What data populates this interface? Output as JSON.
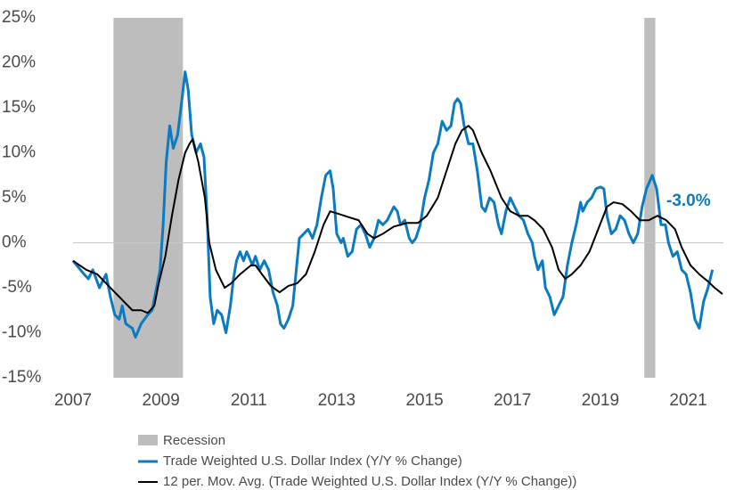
{
  "chart_data": {
    "type": "line",
    "xlim": [
      2007,
      2021.8
    ],
    "xticks": [
      2007,
      2009,
      2011,
      2013,
      2015,
      2017,
      2019,
      2021
    ],
    "ylim": [
      -15,
      25
    ],
    "yticks": [
      {
        "value": -15,
        "label": "-15%"
      },
      {
        "value": -10,
        "label": "-10%"
      },
      {
        "value": -5,
        "label": "-5%"
      },
      {
        "value": 0,
        "label": "0%"
      },
      {
        "value": 5,
        "label": "5%"
      },
      {
        "value": 10,
        "label": "10%"
      },
      {
        "value": 15,
        "label": "15%"
      },
      {
        "value": 20,
        "label": "20%"
      },
      {
        "value": 25,
        "label": "25%"
      }
    ],
    "zero_line": true,
    "recession_label": "Recession",
    "recession_color": "#bdbdbd",
    "recessions": [
      {
        "start": 2007.92,
        "end": 2009.5
      },
      {
        "start": 2020.0,
        "end": 2020.25
      }
    ],
    "annotation": "-3.0%",
    "series": [
      {
        "name": "Trade Weighted U.S. Dollar Index (Y/Y % Change)",
        "color": "#0a7bc1",
        "x": [
          2007.0,
          2007.25,
          2007.35,
          2007.45,
          2007.6,
          2007.75,
          2007.85,
          2007.95,
          2008.05,
          2008.12,
          2008.2,
          2008.35,
          2008.42,
          2008.55,
          2008.7,
          2008.8,
          2008.9,
          2008.98,
          2009.05,
          2009.12,
          2009.2,
          2009.28,
          2009.38,
          2009.48,
          2009.55,
          2009.62,
          2009.7,
          2009.8,
          2009.9,
          2009.98,
          2010.05,
          2010.12,
          2010.2,
          2010.28,
          2010.38,
          2010.48,
          2010.58,
          2010.65,
          2010.72,
          2010.8,
          2010.88,
          2010.95,
          2011.0,
          2011.08,
          2011.15,
          2011.25,
          2011.35,
          2011.45,
          2011.55,
          2011.65,
          2011.72,
          2011.8,
          2011.9,
          2012.0,
          2012.08,
          2012.15,
          2012.25,
          2012.35,
          2012.45,
          2012.55,
          2012.65,
          2012.75,
          2012.85,
          2012.92,
          2013.0,
          2013.1,
          2013.15,
          2013.25,
          2013.35,
          2013.45,
          2013.55,
          2013.65,
          2013.75,
          2013.85,
          2013.95,
          2014.05,
          2014.15,
          2014.25,
          2014.3,
          2014.38,
          2014.45,
          2014.55,
          2014.65,
          2014.72,
          2014.8,
          2014.9,
          2015.0,
          2015.1,
          2015.2,
          2015.3,
          2015.4,
          2015.5,
          2015.6,
          2015.68,
          2015.75,
          2015.82,
          2015.9,
          2016.0,
          2016.1,
          2016.2,
          2016.3,
          2016.38,
          2016.48,
          2016.58,
          2016.68,
          2016.75,
          2016.85,
          2016.95,
          2017.05,
          2017.15,
          2017.25,
          2017.35,
          2017.45,
          2017.5,
          2017.58,
          2017.68,
          2017.75,
          2017.85,
          2017.95,
          2018.05,
          2018.15,
          2018.25,
          2018.35,
          2018.45,
          2018.55,
          2018.6,
          2018.7,
          2018.8,
          2018.9,
          2019.0,
          2019.08,
          2019.15,
          2019.25,
          2019.35,
          2019.45,
          2019.55,
          2019.65,
          2019.75,
          2019.85,
          2019.95,
          2020.05,
          2020.18,
          2020.28,
          2020.38,
          2020.48,
          2020.55,
          2020.65,
          2020.75,
          2020.85,
          2020.95,
          2021.05,
          2021.15,
          2021.25,
          2021.35,
          2021.45,
          2021.55
        ],
        "values": [
          -2,
          -3.5,
          -4,
          -3,
          -5,
          -3.5,
          -6,
          -8,
          -8.5,
          -7,
          -9,
          -9.5,
          -10.5,
          -9,
          -8,
          -7.5,
          -5,
          -3,
          2,
          9,
          13,
          10.5,
          12,
          16,
          19,
          17,
          12,
          10,
          11,
          9.5,
          3,
          -6,
          -9,
          -7.5,
          -8,
          -10,
          -7,
          -4,
          -2,
          -1,
          -2,
          -1,
          -1.5,
          -2.5,
          -1.5,
          -3,
          -2,
          -3,
          -5.5,
          -7,
          -9,
          -9.5,
          -8.5,
          -7,
          -3,
          0.5,
          1,
          1.5,
          0.5,
          2,
          5,
          7.5,
          8,
          6,
          1,
          0,
          0.5,
          -1.5,
          -1,
          1.5,
          2,
          1,
          -0.5,
          0.5,
          2.5,
          2,
          2.5,
          3.5,
          4,
          3.5,
          2,
          2.5,
          0.5,
          0,
          0.5,
          2,
          5,
          7,
          10,
          11,
          13.5,
          12.5,
          13,
          15.5,
          16,
          15.5,
          13,
          11,
          11,
          8,
          4,
          3.5,
          5,
          4.5,
          2,
          1,
          3.5,
          5,
          4,
          3,
          2.5,
          1,
          0,
          -1.5,
          -3,
          -2,
          -5,
          -6,
          -8,
          -7,
          -6,
          -2.5,
          0,
          2,
          4.5,
          3.5,
          4.5,
          5,
          6,
          6.2,
          6,
          3,
          1,
          1.5,
          3,
          2.5,
          1,
          0,
          1,
          4,
          6,
          7.5,
          6,
          2,
          2,
          0,
          -1.5,
          -1,
          -3,
          -3.5,
          -5.5,
          -8.5,
          -9.5,
          -6.5,
          -5,
          -3
        ]
      },
      {
        "name": "12 per. Mov. Avg. (Trade Weighted U.S. Dollar Index (Y/Y % Change))",
        "color": "#000000",
        "x": [
          2007.0,
          2007.3,
          2007.55,
          2007.75,
          2007.95,
          2008.15,
          2008.35,
          2008.55,
          2008.7,
          2008.85,
          2008.95,
          2009.1,
          2009.25,
          2009.4,
          2009.55,
          2009.65,
          2009.72,
          2009.85,
          2010.0,
          2010.1,
          2010.25,
          2010.45,
          2010.6,
          2010.8,
          2011.05,
          2011.15,
          2011.3,
          2011.5,
          2011.7,
          2011.9,
          2012.1,
          2012.3,
          2012.5,
          2012.7,
          2012.85,
          2013.05,
          2013.3,
          2013.5,
          2013.7,
          2013.85,
          2014.05,
          2014.3,
          2014.6,
          2014.85,
          2015.05,
          2015.3,
          2015.5,
          2015.7,
          2015.85,
          2016.0,
          2016.1,
          2016.3,
          2016.5,
          2016.75,
          2016.95,
          2017.15,
          2017.35,
          2017.5,
          2017.7,
          2017.9,
          2018.05,
          2018.2,
          2018.35,
          2018.55,
          2018.75,
          2018.95,
          2019.15,
          2019.3,
          2019.5,
          2019.7,
          2019.9,
          2020.1,
          2020.3,
          2020.5,
          2020.7,
          2020.85,
          2021.05,
          2021.25,
          2021.45,
          2021.6,
          2021.78
        ],
        "values": [
          -2,
          -3,
          -3.5,
          -4.5,
          -5.5,
          -6.5,
          -7.5,
          -7.5,
          -7.8,
          -7,
          -4.5,
          -1.5,
          3,
          7,
          10,
          11,
          11.5,
          9,
          5,
          0,
          -3,
          -5,
          -4.5,
          -3.5,
          -2.5,
          -2.5,
          -3.5,
          -4.8,
          -5.5,
          -4.8,
          -4.5,
          -3.5,
          -1,
          2,
          3.5,
          3.2,
          2.8,
          2.5,
          1,
          0.5,
          1,
          1.8,
          2.2,
          2.2,
          3,
          5,
          8,
          11,
          12.5,
          13,
          12.5,
          10,
          8,
          5,
          3.5,
          3,
          3,
          2.5,
          1.5,
          -0.5,
          -3,
          -4,
          -3.5,
          -2.5,
          -1,
          1.5,
          4,
          4.5,
          4.3,
          3.5,
          2.5,
          2.5,
          3,
          2.5,
          1.5,
          -0.5,
          -2.5,
          -3.5,
          -4.3,
          -5,
          -5.7
        ]
      }
    ]
  }
}
